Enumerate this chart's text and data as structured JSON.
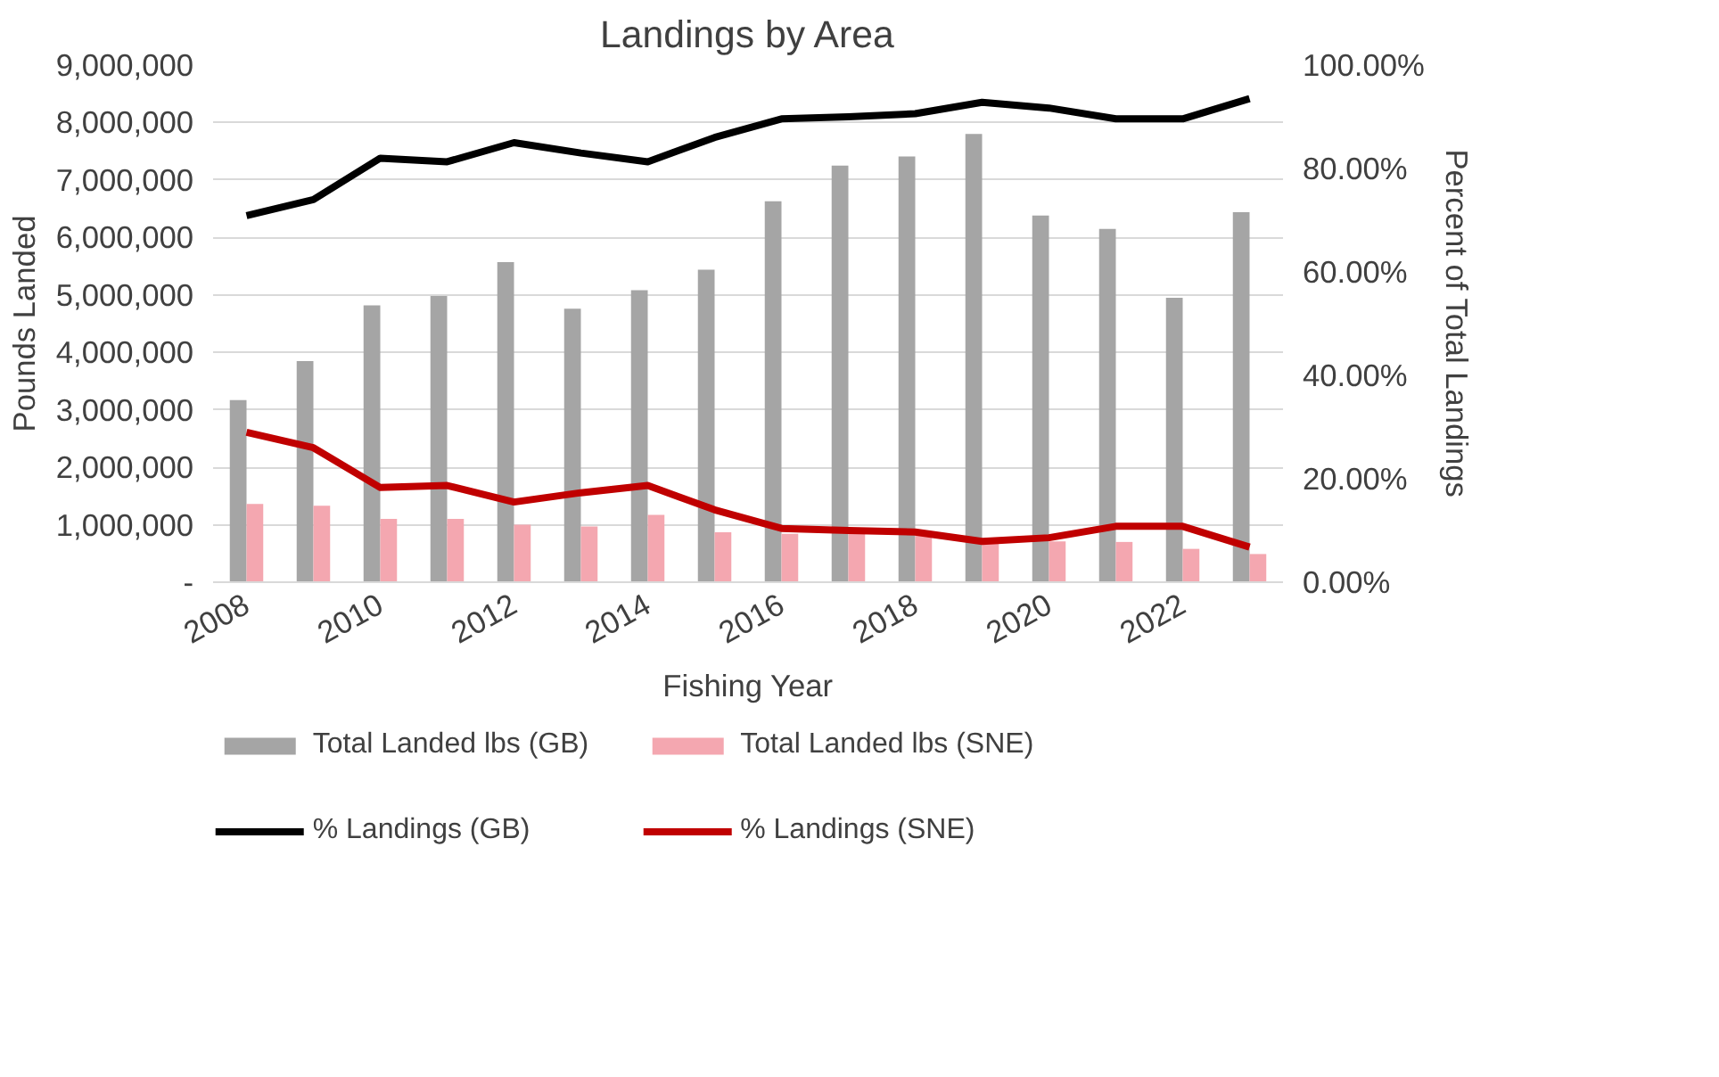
{
  "chart_data": {
    "type": "bar",
    "title": "Landings by Area",
    "xlabel": "Fishing Year",
    "ylabel": "Pounds Landed",
    "y2label": "Percent of Total Landings",
    "categories": [
      "2008",
      null,
      "2010",
      null,
      "2012",
      null,
      "2014",
      null,
      "2016",
      null,
      "2018",
      null,
      "2020",
      null,
      "2022",
      null
    ],
    "series": [
      {
        "name": "Total Landed lbs (GB)",
        "color": "#a5a5a5",
        "values": [
          3170000,
          3850000,
          4820000,
          4980000,
          5570000,
          4760000,
          5080000,
          5440000,
          6630000,
          7250000,
          7410000,
          7800000,
          6380000,
          6150000,
          4950000,
          6440000
        ]
      },
      {
        "name": "Total Landed lbs (SNE)",
        "color": "#f4a7b0",
        "values": [
          1360000,
          1330000,
          1100000,
          1100000,
          1000000,
          970000,
          1170000,
          870000,
          840000,
          840000,
          810000,
          710000,
          710000,
          700000,
          580000,
          490000
        ]
      },
      {
        "name": "% Landings (GB)",
        "type": "line",
        "axis": "y2",
        "color": "#000000",
        "values": [
          70.9,
          74,
          82,
          81.3,
          85,
          83,
          81.3,
          86,
          89.6,
          90,
          90.6,
          92.8,
          91.7,
          89.6,
          89.6,
          93.5
        ]
      },
      {
        "name": "% Landings (SNE)",
        "type": "line",
        "axis": "y2",
        "color": "#c00000",
        "values": [
          29,
          26,
          18.3,
          18.7,
          15.5,
          17.3,
          18.7,
          14,
          10.4,
          10,
          9.7,
          7.9,
          8.6,
          10.8,
          10.8,
          6.8
        ]
      }
    ],
    "ylim": [
      0,
      9000000
    ],
    "yticks": [
      {
        "value": 0,
        "label": "-"
      },
      {
        "value": 1000000,
        "label": "1,000,000"
      },
      {
        "value": 2000000,
        "label": "2,000,000"
      },
      {
        "value": 3000000,
        "label": "3,000,000"
      },
      {
        "value": 4000000,
        "label": "4,000,000"
      },
      {
        "value": 5000000,
        "label": "5,000,000"
      },
      {
        "value": 6000000,
        "label": "6,000,000"
      },
      {
        "value": 7000000,
        "label": "7,000,000"
      },
      {
        "value": 8000000,
        "label": "8,000,000"
      },
      {
        "value": 9000000,
        "label": "9,000,000"
      }
    ],
    "y2lim": [
      0,
      100
    ],
    "y2ticks": [
      {
        "value": 0,
        "label": "0.00%"
      },
      {
        "value": 20,
        "label": "20.00%"
      },
      {
        "value": 40,
        "label": "40.00%"
      },
      {
        "value": 60,
        "label": "60.00%"
      },
      {
        "value": 80,
        "label": "80.00%"
      },
      {
        "value": 100,
        "label": "100.00%"
      }
    ],
    "grid": "y",
    "legend": "bottom"
  }
}
